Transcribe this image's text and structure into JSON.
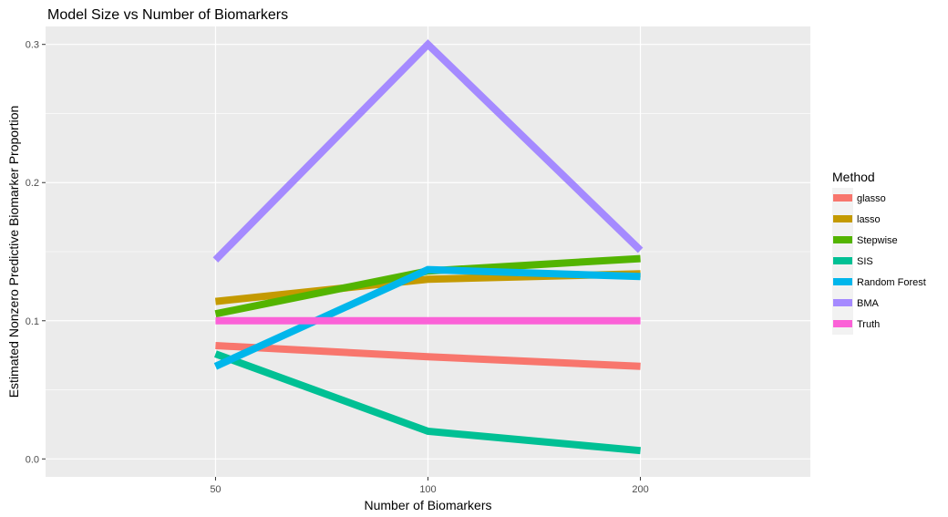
{
  "chart_data": {
    "type": "line",
    "title": "Model Size vs Number of Biomarkers",
    "xlabel": "Number of Biomarkers",
    "ylabel": "Estimated Nonzero Predictive Biomarker Proportion",
    "categories": [
      "50",
      "100",
      "200"
    ],
    "ylim": [
      -0.013,
      0.313
    ],
    "yticks": [
      0.0,
      0.1,
      0.2,
      0.3
    ],
    "ytick_labels": [
      "0.0",
      "0.1",
      "0.2",
      "0.3"
    ],
    "grid": true,
    "legend": {
      "title": "Method",
      "position": "right"
    },
    "series": [
      {
        "name": "glasso",
        "color": "#F8766D",
        "values": [
          0.082,
          0.074,
          0.067
        ]
      },
      {
        "name": "lasso",
        "color": "#C49A00",
        "values": [
          0.114,
          0.13,
          0.134
        ]
      },
      {
        "name": "Stepwise",
        "color": "#53B400",
        "values": [
          0.105,
          0.136,
          0.145
        ]
      },
      {
        "name": "SIS",
        "color": "#00C094",
        "values": [
          0.076,
          0.02,
          0.006
        ]
      },
      {
        "name": "Random Forest",
        "color": "#00B6EB",
        "values": [
          0.067,
          0.137,
          0.132
        ]
      },
      {
        "name": "BMA",
        "color": "#A58AFF",
        "values": [
          0.144,
          0.3,
          0.151
        ]
      },
      {
        "name": "Truth",
        "color": "#FB61D7",
        "values": [
          0.1,
          0.1,
          0.1
        ]
      }
    ]
  }
}
